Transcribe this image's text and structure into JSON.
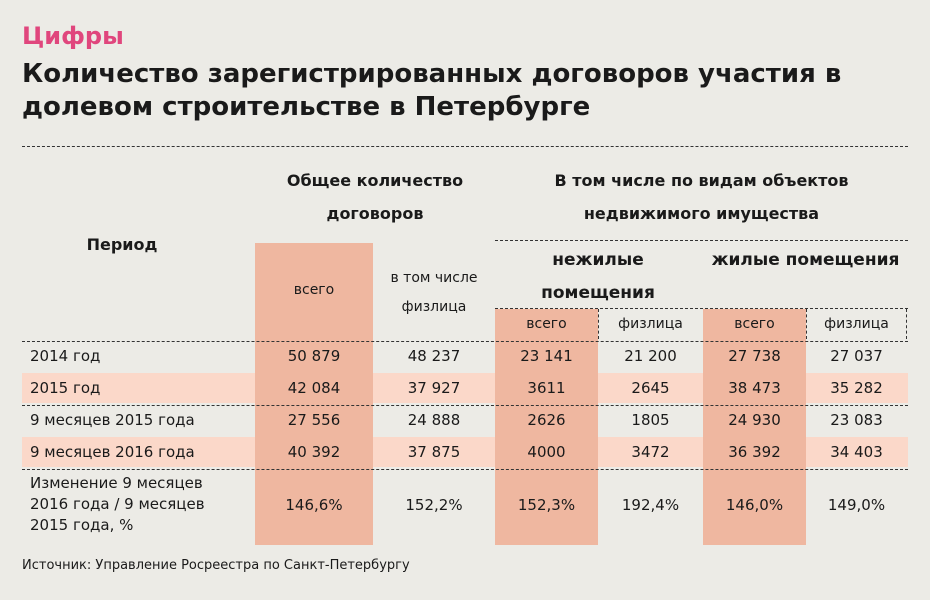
{
  "header": {
    "kicker": "Цифры",
    "title": "Количество зарегистрированных договоров участия в долевом строительстве в Петербурге"
  },
  "table": {
    "period_header": "Период",
    "total_header": "Общее количество договоров",
    "by_type_header": "В том числе по видам объектов недвижимого имущества",
    "total_all": "всего",
    "total_individuals": "в том числе физлица",
    "nonres_header": "нежилые помещения",
    "res_header": "жилые помещения",
    "nonres_all": "всего",
    "nonres_ind": "физлица",
    "res_all": "всего",
    "res_ind": "физлица",
    "rows": [
      {
        "period": "2014 год",
        "cells": [
          "50 879",
          "48 237",
          "23 141",
          "21 200",
          "27 738",
          "27 037"
        ]
      },
      {
        "period": "2015 год",
        "cells": [
          "42 084",
          "37 927",
          "3611",
          "2645",
          "38 473",
          "35 282"
        ]
      },
      {
        "period": "9 месяцев 2015 года",
        "cells": [
          "27 556",
          "24 888",
          "2626",
          "1805",
          "24 930",
          "23 083"
        ]
      },
      {
        "period": "9 месяцев 2016 года",
        "cells": [
          "40 392",
          "37 875",
          "4000",
          "3472",
          "36 392",
          "34 403"
        ]
      },
      {
        "period_lines": [
          "Изменение 9 месяцев",
          "2016 года / 9 месяцев",
          "2015 года, %"
        ],
        "cells": [
          "146,6%",
          "152,2%",
          "152,3%",
          "192,4%",
          "146,0%",
          "149,0%"
        ]
      }
    ]
  },
  "source": "Источник: Управление Росреестра по Санкт-Петербургу",
  "colors": {
    "accent": "#e0467d",
    "column": "#efb7a0",
    "band": "#fbd8c9",
    "background": "#ecebe6"
  }
}
